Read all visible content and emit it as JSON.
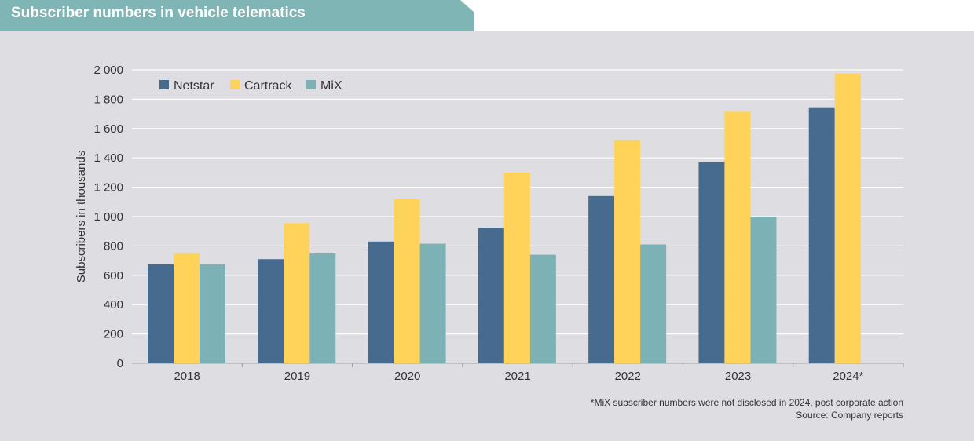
{
  "header": {
    "title": "Subscriber numbers in vehicle telematics"
  },
  "chart_data": {
    "type": "bar",
    "title": "Subscriber numbers in vehicle telematics",
    "xlabel": "",
    "ylabel": "Subscribers in thousands",
    "ylim": [
      0,
      2000
    ],
    "yticks": [
      0,
      200,
      400,
      600,
      800,
      1000,
      1200,
      1400,
      1600,
      1800,
      2000
    ],
    "ytick_labels": [
      "0",
      "200",
      "400",
      "600",
      "800",
      "1 000",
      "1 200",
      "1 400",
      "1 600",
      "1 800",
      "2 000"
    ],
    "categories": [
      "2018",
      "2019",
      "2020",
      "2021",
      "2022",
      "2023",
      "2024*"
    ],
    "series": [
      {
        "name": "Netstar",
        "color": "#476a8f",
        "values": [
          675,
          710,
          830,
          925,
          1140,
          1370,
          1745
        ]
      },
      {
        "name": "Cartrack",
        "color": "#ffd35a",
        "values": [
          750,
          955,
          1120,
          1300,
          1520,
          1715,
          1975
        ]
      },
      {
        "name": "MiX",
        "color": "#7cb1b5",
        "values": [
          675,
          750,
          815,
          740,
          810,
          1000,
          null
        ]
      }
    ],
    "grid": true,
    "legend": "top-left"
  },
  "footnotes": {
    "note": "*MiX subscriber numbers were not disclosed in 2024, post corporate action",
    "source": "Source: Company reports"
  }
}
